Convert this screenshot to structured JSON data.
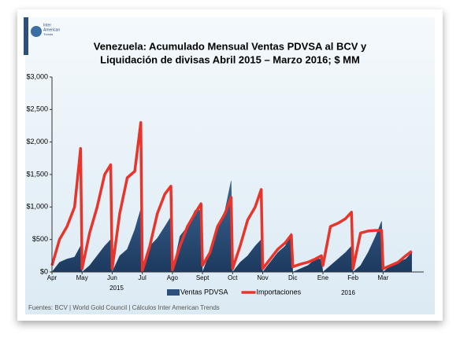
{
  "logo_text": [
    "Inter",
    "American",
    "Trends"
  ],
  "chart_data": {
    "type": "line-area",
    "title": [
      "Venezuela: Acumulado Mensual Ventas PDVSA al BCV y",
      "Liquidación de divisas Abril 2015 – Marzo 2016; $ MM"
    ],
    "x": [
      0,
      0.25,
      0.5,
      0.75,
      0.95,
      1,
      1.25,
      1.5,
      1.75,
      1.95,
      2,
      2.25,
      2.5,
      2.75,
      2.95,
      3,
      3.25,
      3.5,
      3.75,
      3.95,
      4,
      4.25,
      4.5,
      4.75,
      4.95,
      5,
      5.25,
      5.5,
      5.75,
      5.95,
      6,
      6.25,
      6.5,
      6.75,
      6.95,
      7,
      7.25,
      7.5,
      7.75,
      7.95,
      8,
      8.25,
      8.5,
      8.75,
      8.95,
      9,
      9.25,
      9.5,
      9.75,
      9.95,
      10,
      10.25,
      10.5,
      10.75,
      10.95,
      11,
      11.25,
      11.5,
      11.75,
      11.95
    ],
    "series": [
      {
        "name": "Ventas PDVSA",
        "color": "#2c4f7c",
        "kind": "area",
        "values": [
          0,
          150,
          200,
          230,
          400,
          0,
          100,
          250,
          400,
          500,
          0,
          250,
          350,
          650,
          970,
          50,
          400,
          520,
          700,
          850,
          0,
          550,
          700,
          950,
          950,
          0,
          300,
          700,
          950,
          1400,
          0,
          150,
          250,
          400,
          500,
          0,
          150,
          300,
          400,
          600,
          0,
          50,
          100,
          200,
          200,
          0,
          100,
          200,
          300,
          400,
          0,
          100,
          300,
          550,
          780,
          0,
          100,
          150,
          200,
          300
        ]
      },
      {
        "name": "Importaciones",
        "color": "#e8352b",
        "kind": "line",
        "values": [
          100,
          500,
          700,
          1000,
          1900,
          50,
          600,
          1000,
          1500,
          1650,
          50,
          900,
          1450,
          1550,
          2300,
          20,
          400,
          900,
          1200,
          1320,
          30,
          400,
          700,
          900,
          1050,
          100,
          300,
          700,
          900,
          1150,
          50,
          400,
          800,
          1000,
          1270,
          50,
          200,
          350,
          450,
          570,
          80,
          120,
          150,
          200,
          250,
          100,
          700,
          750,
          820,
          920,
          50,
          600,
          630,
          640,
          640,
          50,
          100,
          150,
          250,
          320
        ]
      }
    ],
    "xlim": [
      0,
      12.35
    ],
    "xticks": [
      {
        "value": 0,
        "label": "Apr"
      },
      {
        "value": 1,
        "label": "May"
      },
      {
        "value": 2,
        "label": "Jun"
      },
      {
        "value": 3,
        "label": "Jul"
      },
      {
        "value": 4,
        "label": "Ago"
      },
      {
        "value": 5,
        "label": "Sept"
      },
      {
        "value": 6,
        "label": "Oct"
      },
      {
        "value": 7,
        "label": "Nov"
      },
      {
        "value": 8,
        "label": "Dic"
      },
      {
        "value": 9,
        "label": "Ene"
      },
      {
        "value": 10,
        "label": "Feb"
      },
      {
        "value": 11,
        "label": "Mar"
      }
    ],
    "ylim": [
      0,
      3000
    ],
    "yticks": [
      {
        "value": 0,
        "label": "$0"
      },
      {
        "value": 500,
        "label": "$500"
      },
      {
        "value": 1000,
        "label": "$1,000"
      },
      {
        "value": 1500,
        "label": "$1,500"
      },
      {
        "value": 2000,
        "label": "$2,000"
      },
      {
        "value": 2500,
        "label": "$2,500"
      },
      {
        "value": 3000,
        "label": "$3,000"
      }
    ],
    "year_labels": [
      "2015",
      "2016"
    ],
    "grid": false,
    "legend": "bottom",
    "source": "Fuentes: BCV | World Gold Council  | Cálculos Inter American Trends"
  }
}
